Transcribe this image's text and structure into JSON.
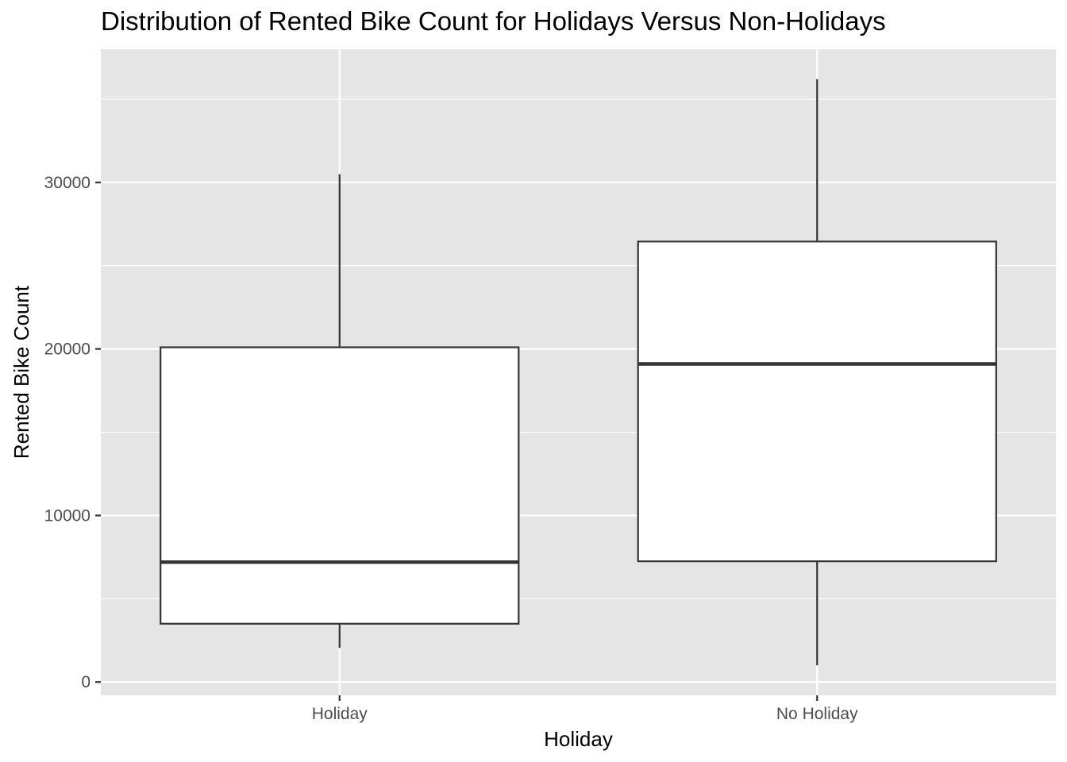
{
  "chart_data": {
    "type": "box",
    "title": "Distribution of Rented Bike Count for Holidays Versus Non-Holidays",
    "xlabel": "Holiday",
    "ylabel": "Rented Bike Count",
    "categories": [
      "Holiday",
      "No Holiday"
    ],
    "boxes": [
      {
        "category": "Holiday",
        "min": 2050,
        "q1": 3500,
        "median": 7200,
        "q3": 20100,
        "max": 30500
      },
      {
        "category": "No Holiday",
        "min": 1000,
        "q1": 7250,
        "median": 19100,
        "q3": 26450,
        "max": 36200
      }
    ],
    "ylim": [
      -800,
      38000
    ],
    "yticks": [
      0,
      10000,
      20000,
      30000
    ],
    "ytick_labels": [
      "0",
      "10000",
      "20000",
      "30000"
    ],
    "y_minor_ticks": [
      5000,
      15000,
      25000,
      35000
    ],
    "grid": true,
    "legend": "none",
    "colors": {
      "panel_background": "#e5e5e5",
      "grid": "#ffffff",
      "box_fill": "#ffffff",
      "box_stroke": "#333333",
      "tick_text": "#4d4d4d",
      "tick_mark": "#333333",
      "title_text": "#000000"
    }
  }
}
